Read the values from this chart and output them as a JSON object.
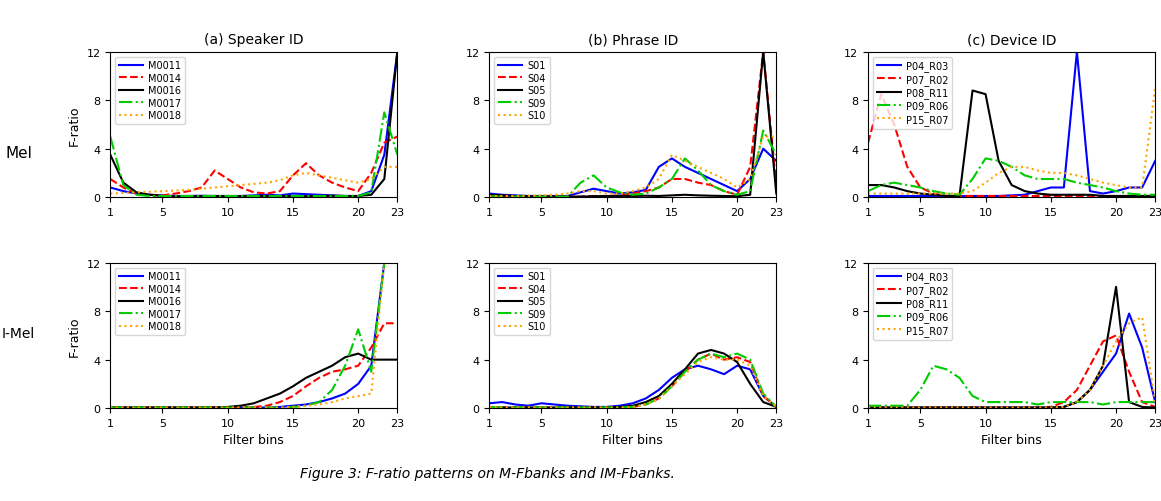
{
  "x": [
    1,
    2,
    3,
    4,
    5,
    6,
    7,
    8,
    9,
    10,
    11,
    12,
    13,
    14,
    15,
    16,
    17,
    18,
    19,
    20,
    21,
    22,
    23
  ],
  "titles_col": [
    "(a) Speaker ID",
    "(b) Phrase ID",
    "(c) Device ID"
  ],
  "row_labels": [
    "Mel",
    "I-Mel"
  ],
  "xlabel": "Filter bins",
  "ylabel": "F-ratio",
  "ylim": [
    0,
    12
  ],
  "yticks": [
    0,
    4,
    8,
    12
  ],
  "xticks": [
    1,
    5,
    10,
    15,
    20,
    23
  ],
  "panels": {
    "mel_speaker": {
      "legend_labels": [
        "M0011",
        "M0014",
        "M0016",
        "M0017",
        "M0018"
      ],
      "colors": [
        "blue",
        "red",
        "black",
        "#00cc00",
        "orange"
      ],
      "styles": [
        "-",
        "--",
        "-",
        "-.",
        ":"
      ],
      "data": [
        [
          0.8,
          0.5,
          0.3,
          0.2,
          0.15,
          0.1,
          0.1,
          0.12,
          0.1,
          0.1,
          0.1,
          0.15,
          0.2,
          0.15,
          0.3,
          0.25,
          0.2,
          0.15,
          0.1,
          0.1,
          0.5,
          3.5,
          12.0
        ],
        [
          1.5,
          0.8,
          0.3,
          0.2,
          0.15,
          0.3,
          0.5,
          0.8,
          2.2,
          1.5,
          0.8,
          0.4,
          0.3,
          0.5,
          1.8,
          2.8,
          1.8,
          1.2,
          0.8,
          0.5,
          2.0,
          4.5,
          5.0
        ],
        [
          3.5,
          1.2,
          0.4,
          0.2,
          0.1,
          0.05,
          0.05,
          0.08,
          0.1,
          0.08,
          0.08,
          0.1,
          0.1,
          0.08,
          0.1,
          0.08,
          0.1,
          0.12,
          0.1,
          0.1,
          0.2,
          1.5,
          12.0
        ],
        [
          5.0,
          1.0,
          0.2,
          0.1,
          0.1,
          0.1,
          0.1,
          0.1,
          0.1,
          0.1,
          0.1,
          0.1,
          0.1,
          0.1,
          0.1,
          0.1,
          0.1,
          0.1,
          0.1,
          0.1,
          0.4,
          7.0,
          3.5
        ],
        [
          0.3,
          0.35,
          0.4,
          0.45,
          0.5,
          0.55,
          0.6,
          0.7,
          0.8,
          0.9,
          1.0,
          1.1,
          1.2,
          1.4,
          1.8,
          2.0,
          1.8,
          1.6,
          1.4,
          1.2,
          1.5,
          2.5,
          2.5
        ]
      ]
    },
    "mel_phrase": {
      "legend_labels": [
        "S01",
        "S04",
        "S05",
        "S09",
        "S10"
      ],
      "colors": [
        "blue",
        "red",
        "black",
        "#00cc00",
        "orange"
      ],
      "styles": [
        "-",
        "--",
        "-",
        "-.",
        ":"
      ],
      "data": [
        [
          0.3,
          0.2,
          0.15,
          0.1,
          0.1,
          0.1,
          0.1,
          0.4,
          0.7,
          0.5,
          0.3,
          0.4,
          0.6,
          2.5,
          3.2,
          2.5,
          2.0,
          1.5,
          1.0,
          0.5,
          1.5,
          4.0,
          3.0
        ],
        [
          0.1,
          0.1,
          0.08,
          0.08,
          0.05,
          0.05,
          0.05,
          0.05,
          0.1,
          0.1,
          0.15,
          0.3,
          0.5,
          0.8,
          1.5,
          1.5,
          1.2,
          1.0,
          0.5,
          0.2,
          2.5,
          12.0,
          1.0
        ],
        [
          0.2,
          0.15,
          0.1,
          0.08,
          0.05,
          0.05,
          0.05,
          0.05,
          0.08,
          0.1,
          0.1,
          0.1,
          0.12,
          0.1,
          0.15,
          0.2,
          0.15,
          0.12,
          0.1,
          0.08,
          0.2,
          12.0,
          0.3
        ],
        [
          0.08,
          0.05,
          0.05,
          0.05,
          0.05,
          0.05,
          0.05,
          1.2,
          1.8,
          0.8,
          0.4,
          0.2,
          0.3,
          0.8,
          1.5,
          3.2,
          2.2,
          1.0,
          0.5,
          0.2,
          0.5,
          5.5,
          3.5
        ],
        [
          0.1,
          0.1,
          0.1,
          0.12,
          0.15,
          0.2,
          0.3,
          0.5,
          0.5,
          0.3,
          0.3,
          0.5,
          0.8,
          1.5,
          3.5,
          3.0,
          2.5,
          2.0,
          1.5,
          0.8,
          1.5,
          5.0,
          5.0
        ]
      ]
    },
    "mel_device": {
      "legend_labels": [
        "P04_R03",
        "P07_R02",
        "P08_R11",
        "P09_R06",
        "P15_R07"
      ],
      "colors": [
        "blue",
        "red",
        "black",
        "#00cc00",
        "orange"
      ],
      "styles": [
        "-",
        "--",
        "-",
        "-.",
        ":"
      ],
      "data": [
        [
          0.1,
          0.1,
          0.1,
          0.1,
          0.1,
          0.1,
          0.1,
          0.1,
          0.1,
          0.1,
          0.1,
          0.15,
          0.2,
          0.5,
          0.8,
          0.8,
          12.0,
          0.5,
          0.3,
          0.5,
          0.8,
          0.8,
          3.0
        ],
        [
          4.5,
          8.5,
          6.0,
          2.5,
          0.8,
          0.3,
          0.1,
          0.1,
          0.1,
          0.1,
          0.1,
          0.1,
          0.1,
          0.1,
          0.1,
          0.1,
          0.1,
          0.1,
          0.1,
          0.1,
          0.1,
          0.1,
          0.1
        ],
        [
          1.0,
          1.0,
          0.8,
          0.5,
          0.3,
          0.2,
          0.1,
          0.1,
          8.8,
          8.5,
          3.0,
          1.0,
          0.5,
          0.3,
          0.2,
          0.2,
          0.2,
          0.2,
          0.1,
          0.1,
          0.1,
          0.1,
          0.1
        ],
        [
          0.5,
          1.0,
          1.2,
          1.0,
          0.8,
          0.5,
          0.3,
          0.2,
          1.5,
          3.2,
          3.0,
          2.5,
          1.8,
          1.5,
          1.5,
          1.5,
          1.2,
          1.0,
          0.8,
          0.5,
          0.3,
          0.2,
          0.2
        ],
        [
          0.3,
          0.3,
          0.3,
          0.3,
          0.3,
          0.3,
          0.3,
          0.3,
          0.5,
          1.2,
          2.0,
          2.5,
          2.5,
          2.2,
          2.0,
          2.0,
          1.8,
          1.5,
          1.2,
          1.0,
          0.8,
          0.8,
          9.0
        ]
      ]
    },
    "imel_speaker": {
      "legend_labels": [
        "M0011",
        "M0014",
        "M0016",
        "M0017",
        "M0018"
      ],
      "colors": [
        "blue",
        "red",
        "black",
        "#00cc00",
        "orange"
      ],
      "styles": [
        "-",
        "--",
        "-",
        "-.",
        ":"
      ],
      "data": [
        [
          0.05,
          0.05,
          0.05,
          0.05,
          0.05,
          0.05,
          0.05,
          0.05,
          0.05,
          0.05,
          0.05,
          0.05,
          0.05,
          0.1,
          0.2,
          0.3,
          0.5,
          0.8,
          1.2,
          2.0,
          3.5,
          12.0,
          12.0
        ],
        [
          0.05,
          0.05,
          0.05,
          0.05,
          0.05,
          0.05,
          0.05,
          0.05,
          0.05,
          0.05,
          0.05,
          0.1,
          0.2,
          0.5,
          1.0,
          1.8,
          2.5,
          3.0,
          3.2,
          3.5,
          5.0,
          7.0,
          7.0
        ],
        [
          0.05,
          0.05,
          0.05,
          0.05,
          0.05,
          0.05,
          0.05,
          0.05,
          0.05,
          0.1,
          0.2,
          0.4,
          0.8,
          1.2,
          1.8,
          2.5,
          3.0,
          3.5,
          4.2,
          4.5,
          4.0,
          4.0,
          4.0
        ],
        [
          0.05,
          0.05,
          0.05,
          0.05,
          0.05,
          0.05,
          0.05,
          0.05,
          0.05,
          0.05,
          0.05,
          0.05,
          0.05,
          0.05,
          0.1,
          0.2,
          0.5,
          1.5,
          3.5,
          6.5,
          3.0,
          12.0,
          12.0
        ],
        [
          0.05,
          0.05,
          0.05,
          0.05,
          0.05,
          0.05,
          0.05,
          0.05,
          0.05,
          0.05,
          0.05,
          0.05,
          0.05,
          0.05,
          0.1,
          0.2,
          0.3,
          0.5,
          0.8,
          1.0,
          1.2,
          12.0,
          12.0
        ]
      ]
    },
    "imel_phrase": {
      "legend_labels": [
        "S01",
        "S04",
        "S05",
        "S09",
        "S10"
      ],
      "colors": [
        "blue",
        "red",
        "black",
        "#00cc00",
        "orange"
      ],
      "styles": [
        "-",
        "--",
        "-",
        "-.",
        ":"
      ],
      "data": [
        [
          0.4,
          0.5,
          0.3,
          0.2,
          0.4,
          0.3,
          0.2,
          0.15,
          0.1,
          0.1,
          0.2,
          0.4,
          0.8,
          1.5,
          2.5,
          3.2,
          3.5,
          3.2,
          2.8,
          3.5,
          3.2,
          1.0,
          0.1
        ],
        [
          0.1,
          0.05,
          0.05,
          0.05,
          0.05,
          0.05,
          0.05,
          0.05,
          0.05,
          0.05,
          0.05,
          0.1,
          0.3,
          0.8,
          1.8,
          3.0,
          4.0,
          4.5,
          4.0,
          4.2,
          3.8,
          1.0,
          0.1
        ],
        [
          0.1,
          0.05,
          0.05,
          0.05,
          0.05,
          0.05,
          0.05,
          0.05,
          0.05,
          0.05,
          0.1,
          0.2,
          0.5,
          1.0,
          2.0,
          3.2,
          4.5,
          4.8,
          4.5,
          3.8,
          2.0,
          0.5,
          0.1
        ],
        [
          0.1,
          0.05,
          0.05,
          0.05,
          0.05,
          0.05,
          0.05,
          0.05,
          0.05,
          0.05,
          0.05,
          0.1,
          0.3,
          0.8,
          1.8,
          3.0,
          4.0,
          4.5,
          4.2,
          4.5,
          4.0,
          1.2,
          0.1
        ],
        [
          0.1,
          0.05,
          0.05,
          0.05,
          0.05,
          0.05,
          0.05,
          0.05,
          0.05,
          0.05,
          0.05,
          0.1,
          0.3,
          0.8,
          1.8,
          2.8,
          3.8,
          4.2,
          4.0,
          4.0,
          3.5,
          1.0,
          0.1
        ]
      ]
    },
    "imel_device": {
      "legend_labels": [
        "P04_R03",
        "P07_R02",
        "P08_R11",
        "P09_R06",
        "P15_R07"
      ],
      "colors": [
        "blue",
        "red",
        "black",
        "#00cc00",
        "orange"
      ],
      "styles": [
        "-",
        "--",
        "-",
        "-.",
        ":"
      ],
      "data": [
        [
          0.05,
          0.05,
          0.05,
          0.05,
          0.05,
          0.05,
          0.05,
          0.05,
          0.05,
          0.05,
          0.05,
          0.05,
          0.05,
          0.05,
          0.05,
          0.1,
          0.5,
          1.5,
          3.0,
          4.5,
          7.8,
          5.0,
          0.5
        ],
        [
          0.05,
          0.05,
          0.05,
          0.05,
          0.05,
          0.05,
          0.05,
          0.05,
          0.05,
          0.05,
          0.05,
          0.05,
          0.05,
          0.05,
          0.1,
          0.5,
          1.5,
          3.5,
          5.5,
          6.0,
          3.0,
          0.5,
          0.1
        ],
        [
          0.05,
          0.05,
          0.05,
          0.05,
          0.05,
          0.05,
          0.05,
          0.05,
          0.05,
          0.05,
          0.05,
          0.05,
          0.05,
          0.05,
          0.05,
          0.1,
          0.5,
          1.5,
          3.5,
          10.0,
          0.5,
          0.1,
          0.05
        ],
        [
          0.2,
          0.2,
          0.2,
          0.2,
          1.5,
          3.5,
          3.2,
          2.5,
          1.0,
          0.5,
          0.5,
          0.5,
          0.5,
          0.3,
          0.5,
          0.5,
          0.5,
          0.5,
          0.3,
          0.5,
          0.5,
          0.5,
          0.5
        ],
        [
          0.05,
          0.05,
          0.05,
          0.05,
          0.05,
          0.05,
          0.05,
          0.05,
          0.05,
          0.05,
          0.05,
          0.05,
          0.05,
          0.05,
          0.05,
          0.1,
          0.5,
          1.5,
          3.5,
          5.5,
          7.0,
          7.5,
          0.5
        ]
      ]
    }
  },
  "figure_caption": "Figure 3: F-ratio patterns on M-Fbanks and IM-Fbanks.",
  "bg_color": "white"
}
